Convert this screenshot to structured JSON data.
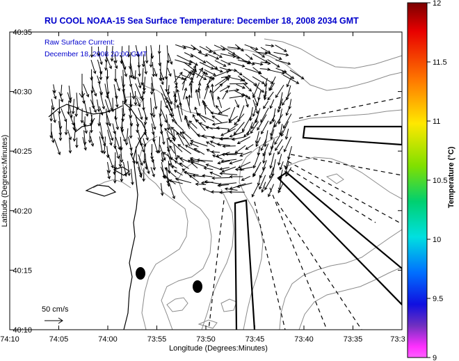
{
  "title": "RU COOL  NOAA-15  Sea Surface Temperature:  December 18, 2008 2034 GMT",
  "annotation": {
    "line1": "Raw Surface Current:",
    "line2": "December 18, 2008 20:00 GMT"
  },
  "axes": {
    "xlabel": "Longitude (Degrees:Minutes)",
    "ylabel": "Latitude (Degrees:Minutes)",
    "xticks": [
      "74:10",
      "74:05",
      "74:00",
      "73:55",
      "73:50",
      "73:45",
      "73:40",
      "73:35",
      "73:3"
    ],
    "yticks": [
      "40:35",
      "40:30",
      "40:25",
      "40:20",
      "40:15",
      "40:10"
    ]
  },
  "scale": {
    "label": "50 cm/s"
  },
  "colorbar": {
    "label": "Temperature (°C)",
    "ticks": [
      "12",
      "11.5",
      "11",
      "10.5",
      "10",
      "9.5",
      "9"
    ]
  },
  "colors": {
    "title_blue": "#0000cc",
    "vectors": "#000000",
    "coast": "#000000",
    "bathymetry": "#888888"
  }
}
